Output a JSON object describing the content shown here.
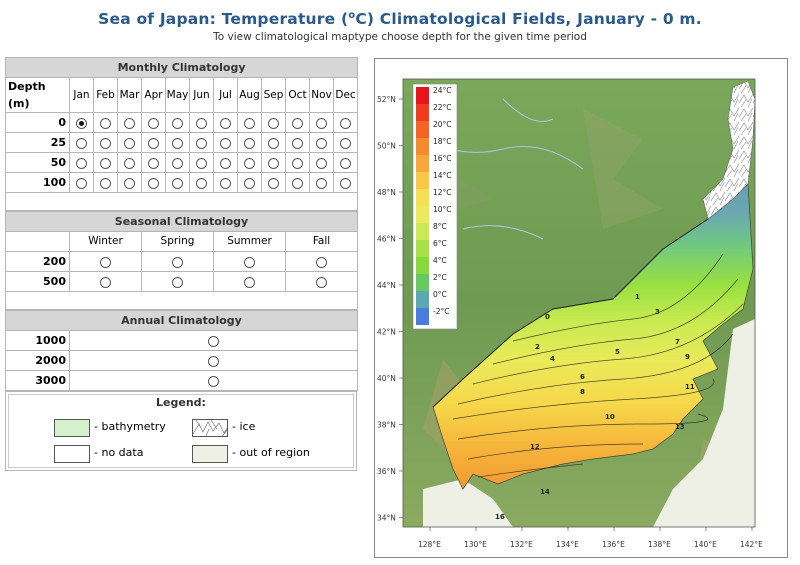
{
  "page": {
    "title_prefix": "Sea of Japan: Temperature (",
    "title_sup": "o",
    "title_suffix": "C) Climatological Fields, January - 0 m.",
    "subtitle": "To view climatological maptype choose depth for the given time period"
  },
  "monthly": {
    "header": "Monthly Climatology",
    "depth_label": "Depth (m)",
    "months": [
      "Jan",
      "Feb",
      "Mar",
      "Apr",
      "May",
      "Jun",
      "Jul",
      "Aug",
      "Sep",
      "Oct",
      "Nov",
      "Dec"
    ],
    "depths": [
      "0",
      "25",
      "50",
      "100"
    ],
    "selected": {
      "depth": "0",
      "month": "Jan"
    }
  },
  "seasonal": {
    "header": "Seasonal Climatology",
    "seasons": [
      "Winter",
      "Spring",
      "Summer",
      "Fall"
    ],
    "depths": [
      "200",
      "500"
    ]
  },
  "annual": {
    "header": "Annual Climatology",
    "depths": [
      "1000",
      "2000",
      "3000"
    ]
  },
  "legend": {
    "title": "Legend:",
    "items": [
      {
        "label": "- bathymetry",
        "color": "#d4f0cc"
      },
      {
        "label": "- ice",
        "color": "#ffffff"
      },
      {
        "label": "- no data",
        "color": "#ffffff"
      },
      {
        "label": "- out of region",
        "color": "#eef0e6"
      }
    ]
  },
  "map": {
    "lat_labels": [
      "52°N",
      "50°N",
      "48°N",
      "46°N",
      "44°N",
      "42°N",
      "40°N",
      "38°N",
      "36°N",
      "34°N"
    ],
    "lon_labels": [
      "128°E",
      "130°E",
      "132°E",
      "134°E",
      "136°E",
      "138°E",
      "140°E",
      "142°E"
    ],
    "colorbar_labels": [
      "24°C",
      "22°C",
      "20°C",
      "18°C",
      "16°C",
      "14°C",
      "12°C",
      "10°C",
      "8°C",
      "6°C",
      "4°C",
      "2°C",
      "0°C",
      "-2°C"
    ],
    "colorbar_colors": [
      "#e8141c",
      "#f03c1e",
      "#f46424",
      "#f68a2c",
      "#f8a838",
      "#fac846",
      "#f6e050",
      "#eaea5a",
      "#ccea54",
      "#a8e048",
      "#88d83c",
      "#68c860",
      "#5aa8b4",
      "#4a7ce0"
    ],
    "contour_labels": [
      "0",
      "1",
      "2",
      "3",
      "4",
      "5",
      "6",
      "7",
      "8",
      "9",
      "10",
      "11",
      "12",
      "13",
      "14",
      "16"
    ]
  }
}
